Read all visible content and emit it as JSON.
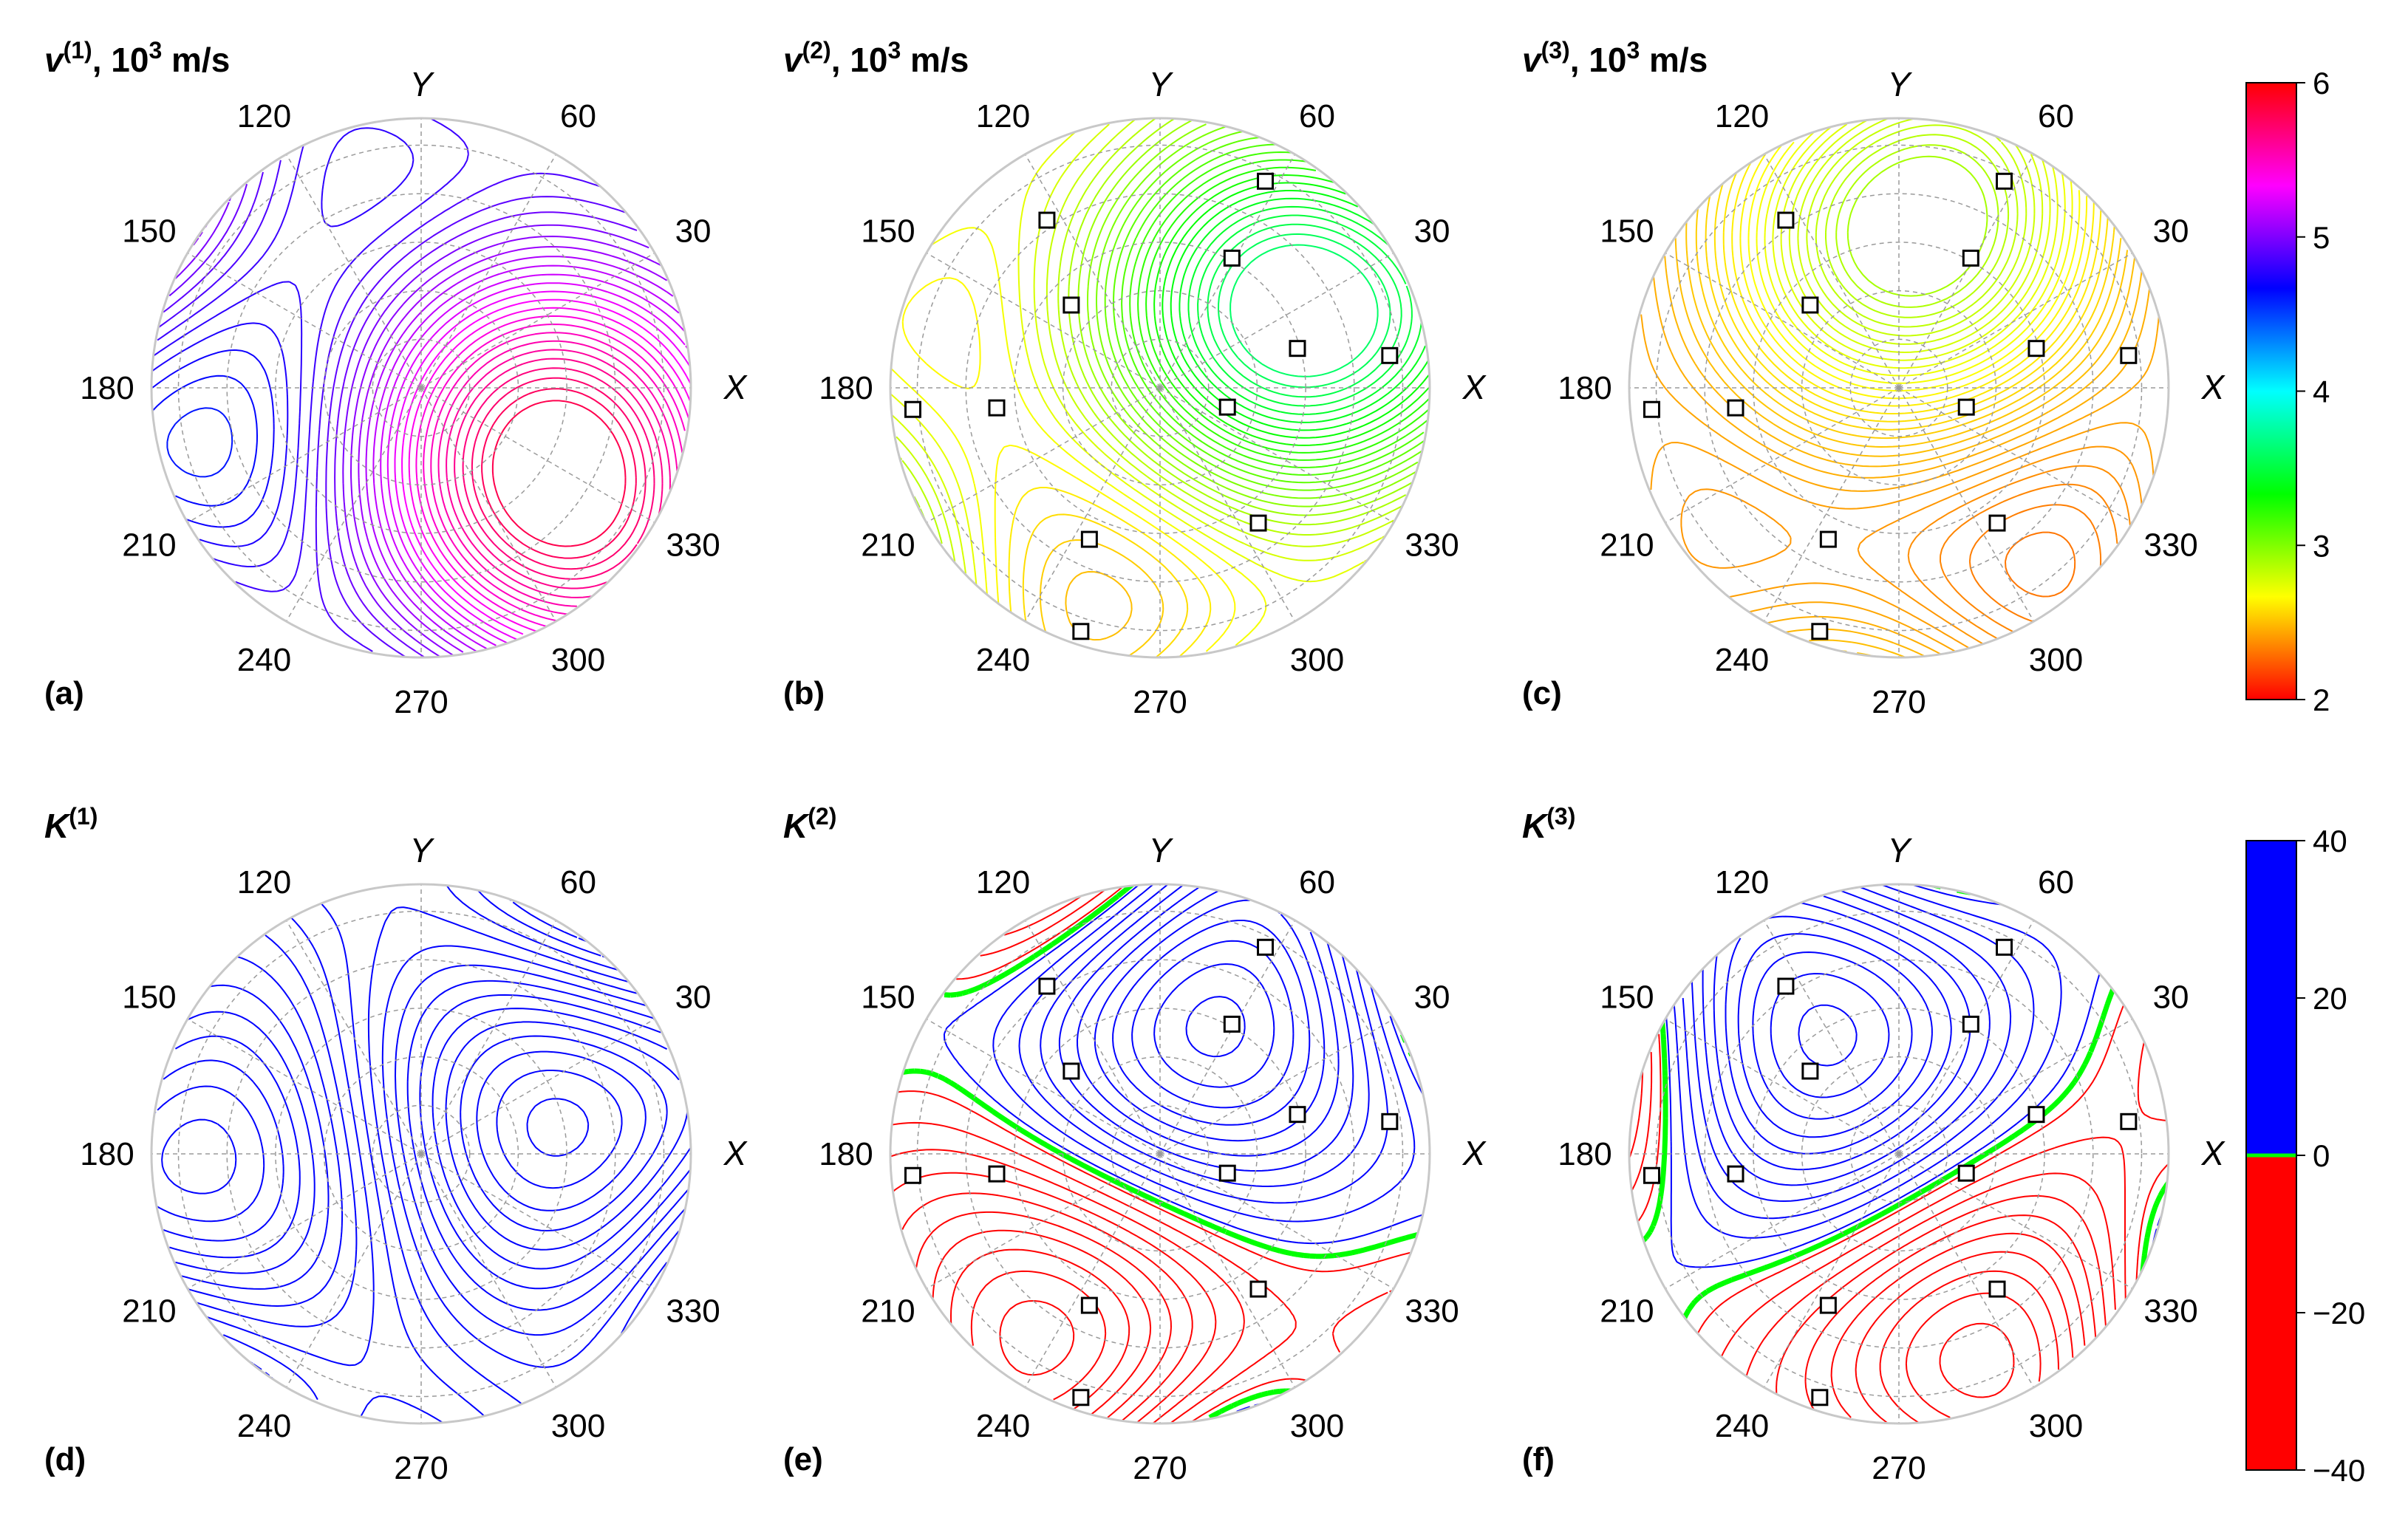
{
  "chart_data": [
    {
      "type": "polar-contour",
      "panel_label": "(a)",
      "title_base": "v",
      "title_sup": "(1)",
      "title_unit": ", 10",
      "title_unit_sup": "3",
      "title_unit_tail": " m/s",
      "quantity": "velocity",
      "colormap": "velocity",
      "x_axis_label": "X",
      "y_axis_label": "Y",
      "angle_ticks": [
        "30",
        "60",
        "120",
        "150",
        "180",
        "210",
        "240",
        "270",
        "300",
        "330"
      ],
      "value_range": [
        4.4,
        5.8
      ],
      "orientation_deg": -25,
      "markers": []
    },
    {
      "type": "polar-contour",
      "panel_label": "(b)",
      "title_base": "v",
      "title_sup": "(2)",
      "title_unit": ", 10",
      "title_unit_sup": "3",
      "title_unit_tail": " m/s",
      "quantity": "velocity",
      "colormap": "velocity",
      "x_axis_label": "X",
      "y_axis_label": "Y",
      "angle_ticks": [
        "30",
        "60",
        "120",
        "150",
        "180",
        "210",
        "240",
        "270",
        "300",
        "330"
      ],
      "value_range": [
        2.3,
        3.6
      ],
      "orientation_deg": 35,
      "markers": [
        [
          0.86,
          63
        ],
        [
          0.55,
          61
        ],
        [
          0.75,
          124
        ],
        [
          0.45,
          137
        ],
        [
          0.86,
          8
        ],
        [
          0.53,
          16
        ],
        [
          0.26,
          -16
        ],
        [
          0.92,
          185
        ],
        [
          0.61,
          187
        ],
        [
          0.62,
          -115
        ],
        [
          0.95,
          -108
        ],
        [
          0.62,
          -54
        ]
      ]
    },
    {
      "type": "polar-contour",
      "panel_label": "(c)",
      "title_base": "v",
      "title_sup": "(3)",
      "title_unit": ", 10",
      "title_unit_sup": "3",
      "title_unit_tail": " m/s",
      "quantity": "velocity",
      "colormap": "velocity",
      "x_axis_label": "X",
      "y_axis_label": "Y",
      "angle_ticks": [
        "30",
        "60",
        "120",
        "150",
        "180",
        "210",
        "240",
        "270",
        "300",
        "330"
      ],
      "value_range": [
        2.2,
        2.9
      ],
      "orientation_deg": 90,
      "markers": [
        [
          0.86,
          63
        ],
        [
          0.55,
          61
        ],
        [
          0.75,
          124
        ],
        [
          0.45,
          137
        ],
        [
          0.86,
          8
        ],
        [
          0.53,
          16
        ],
        [
          0.26,
          -16
        ],
        [
          0.92,
          185
        ],
        [
          0.61,
          187
        ],
        [
          0.62,
          -115
        ],
        [
          0.95,
          -108
        ],
        [
          0.62,
          -54
        ]
      ]
    },
    {
      "type": "polar-contour",
      "panel_label": "(d)",
      "title_base": "K",
      "title_sup": "(1)",
      "quantity": "focusing",
      "colormap": "focusing",
      "x_axis_label": "X",
      "y_axis_label": "Y",
      "angle_ticks": [
        "30",
        "60",
        "120",
        "150",
        "180",
        "210",
        "240",
        "270",
        "300",
        "330"
      ],
      "value_range": [
        0.5,
        12
      ],
      "zero_contour": false,
      "orientation_deg": -20,
      "markers": []
    },
    {
      "type": "polar-contour",
      "panel_label": "(e)",
      "title_base": "K",
      "title_sup": "(2)",
      "quantity": "focusing",
      "colormap": "focusing",
      "x_axis_label": "X",
      "y_axis_label": "Y",
      "angle_ticks": [
        "30",
        "60",
        "120",
        "150",
        "180",
        "210",
        "240",
        "270",
        "300",
        "330"
      ],
      "value_range": [
        -40,
        40
      ],
      "zero_contour": true,
      "orientation_deg": 35,
      "markers": [
        [
          0.86,
          63
        ],
        [
          0.55,
          61
        ],
        [
          0.75,
          124
        ],
        [
          0.45,
          137
        ],
        [
          0.86,
          8
        ],
        [
          0.53,
          16
        ],
        [
          0.26,
          -16
        ],
        [
          0.92,
          185
        ],
        [
          0.61,
          187
        ],
        [
          0.62,
          -115
        ],
        [
          0.95,
          -108
        ],
        [
          0.62,
          -54
        ]
      ]
    },
    {
      "type": "polar-contour",
      "panel_label": "(f)",
      "title_base": "K",
      "title_sup": "(3)",
      "quantity": "focusing",
      "colormap": "focusing",
      "x_axis_label": "X",
      "y_axis_label": "Y",
      "angle_ticks": [
        "30",
        "60",
        "120",
        "150",
        "180",
        "210",
        "240",
        "270",
        "300",
        "330"
      ],
      "value_range": [
        -40,
        40
      ],
      "zero_contour": true,
      "orientation_deg": 90,
      "markers": [
        [
          0.86,
          63
        ],
        [
          0.55,
          61
        ],
        [
          0.75,
          124
        ],
        [
          0.45,
          137
        ],
        [
          0.86,
          8
        ],
        [
          0.53,
          16
        ],
        [
          0.26,
          -16
        ],
        [
          0.92,
          185
        ],
        [
          0.61,
          187
        ],
        [
          0.62,
          -115
        ],
        [
          0.95,
          -108
        ],
        [
          0.62,
          -54
        ]
      ]
    }
  ],
  "colorbars": {
    "velocity": {
      "ticks": [
        "6",
        "5",
        "4",
        "3",
        "2"
      ],
      "range": [
        2,
        6
      ],
      "colors": [
        "#ff0000",
        "#ffff00",
        "#00ff00",
        "#00ffff",
        "#0000ff",
        "#ff00ff",
        "#ff0000"
      ]
    },
    "focusing": {
      "ticks": [
        "40",
        "20",
        "0",
        "−20",
        "−40"
      ],
      "range": [
        -40,
        40
      ],
      "positive_color": "#0000ff",
      "negative_color": "#ff0000",
      "zero_color": "#00ff00"
    }
  },
  "colors": {
    "grid": "#9a9a9a",
    "marker_fill": "#ffffff",
    "marker_stroke": "#000000",
    "zero_contour": "#00ff00"
  }
}
